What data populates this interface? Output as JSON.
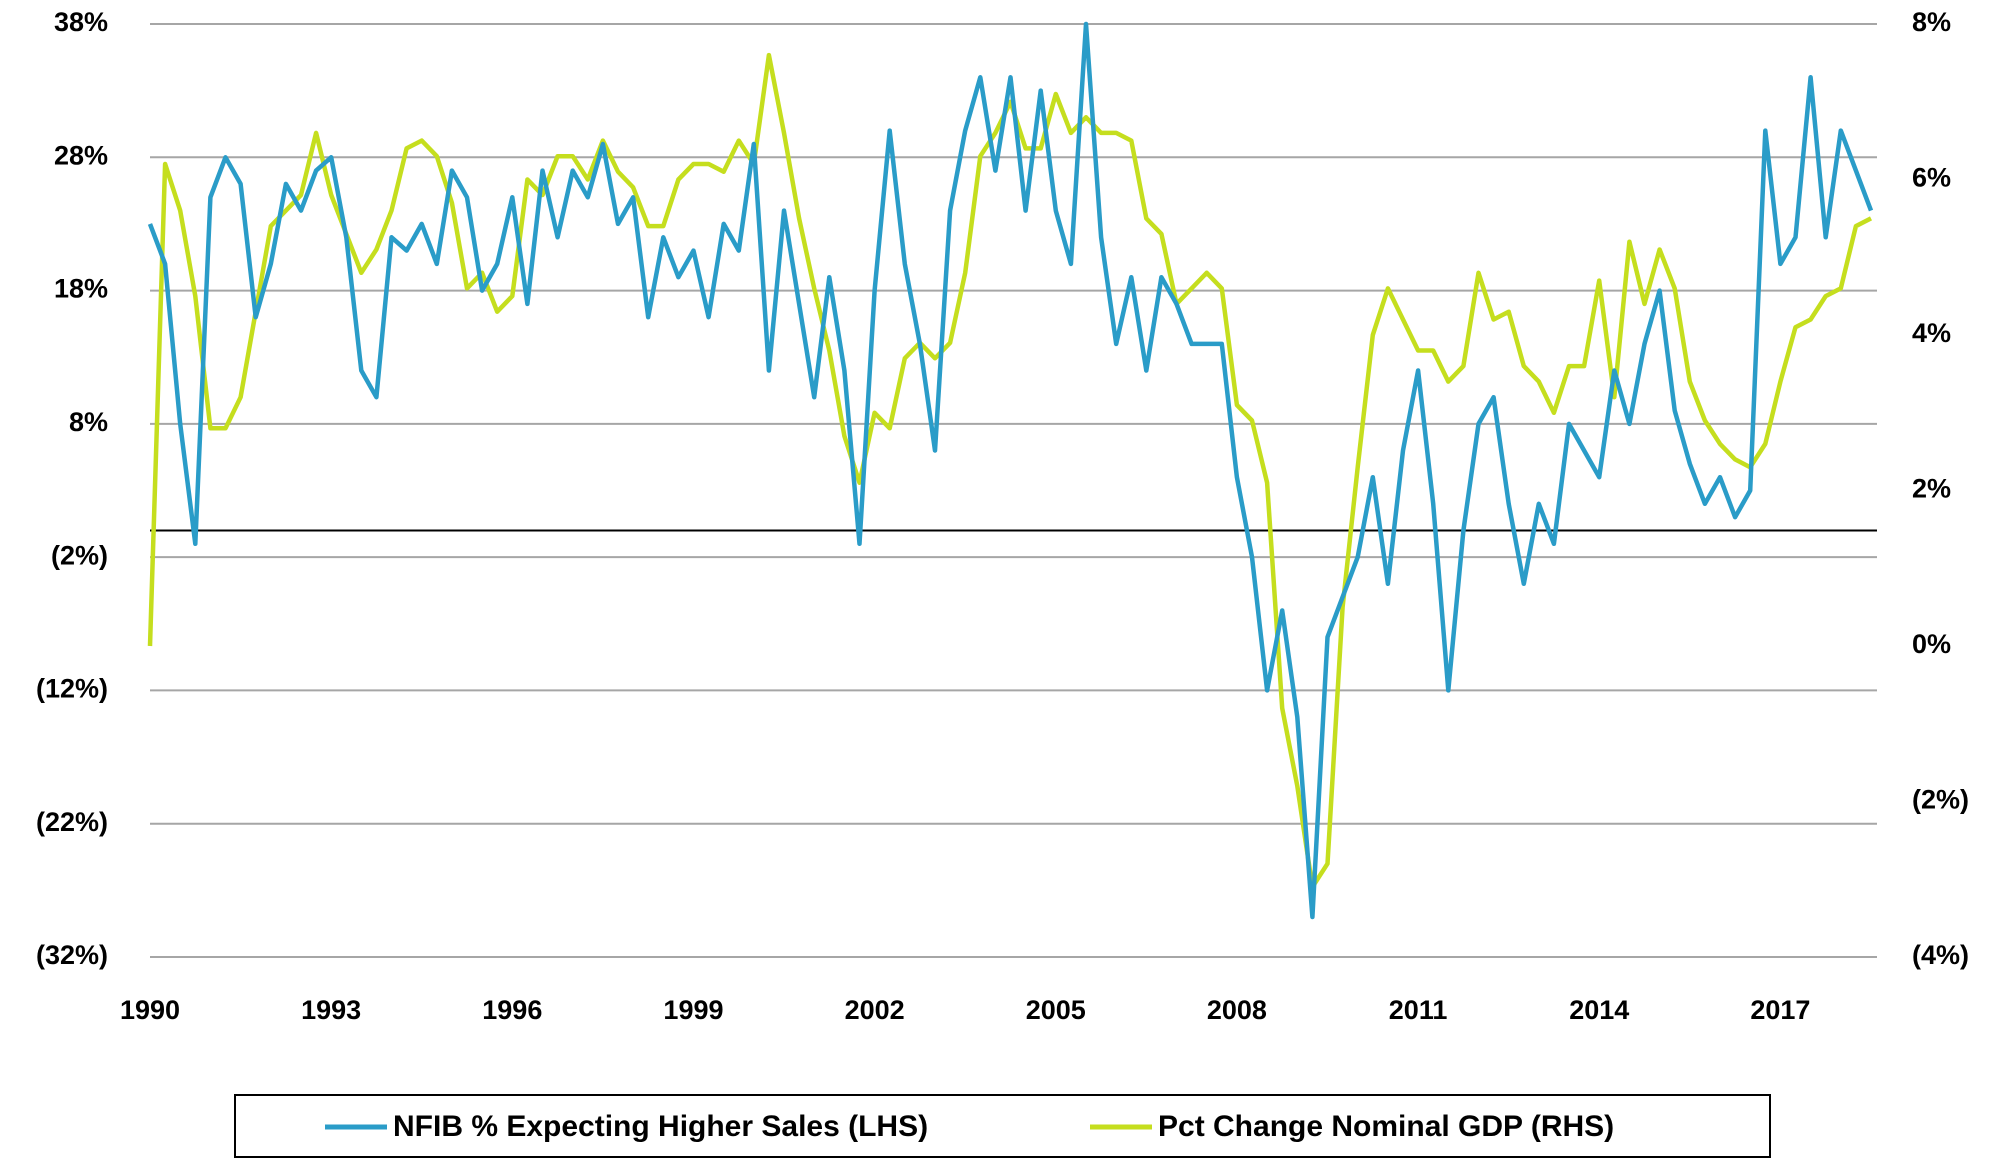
{
  "chart_data": {
    "type": "line",
    "x": [
      1990,
      1990.25,
      1990.5,
      1990.75,
      1991,
      1991.25,
      1991.5,
      1991.75,
      1992,
      1992.25,
      1992.5,
      1992.75,
      1993,
      1993.25,
      1993.5,
      1993.75,
      1994,
      1994.25,
      1994.5,
      1994.75,
      1995,
      1995.25,
      1995.5,
      1995.75,
      1996,
      1996.25,
      1996.5,
      1996.75,
      1997,
      1997.25,
      1997.5,
      1997.75,
      1998,
      1998.25,
      1998.5,
      1998.75,
      1999,
      1999.25,
      1999.5,
      1999.75,
      2000,
      2000.25,
      2000.5,
      2000.75,
      2001,
      2001.25,
      2001.5,
      2001.75,
      2002,
      2002.25,
      2002.5,
      2002.75,
      2003,
      2003.25,
      2003.5,
      2003.75,
      2004,
      2004.25,
      2004.5,
      2004.75,
      2005,
      2005.25,
      2005.5,
      2005.75,
      2006,
      2006.25,
      2006.5,
      2006.75,
      2007,
      2007.25,
      2007.5,
      2007.75,
      2008,
      2008.25,
      2008.5,
      2008.75,
      2009,
      2009.25,
      2009.5,
      2009.75,
      2010,
      2010.25,
      2010.5,
      2010.75,
      2011,
      2011.25,
      2011.5,
      2011.75,
      2012,
      2012.25,
      2012.5,
      2012.75,
      2013,
      2013.25,
      2013.5,
      2013.75,
      2014,
      2014.25,
      2014.5,
      2014.75,
      2015,
      2015.25,
      2015.5,
      2015.75,
      2016,
      2016.25,
      2016.5,
      2016.75,
      2017,
      2017.25,
      2017.5,
      2017.75,
      2018,
      2018.25,
      2018.5
    ],
    "series": [
      {
        "name": "NFIB % Expecting Higher Sales (LHS)",
        "color": "#2a9cc8",
        "values": [
          23,
          20,
          8,
          -1,
          25,
          28,
          26,
          16,
          20,
          26,
          24,
          27,
          28,
          22,
          12,
          10,
          22,
          21,
          23,
          20,
          27,
          25,
          18,
          20,
          25,
          17,
          27,
          22,
          27,
          25,
          29,
          23,
          25,
          16,
          22,
          19,
          21,
          16,
          23,
          21,
          29,
          12,
          24,
          17,
          10,
          19,
          12,
          -1,
          18,
          30,
          20,
          14,
          6,
          24,
          30,
          34,
          27,
          34,
          24,
          33,
          24,
          20,
          38,
          22,
          14,
          19,
          12,
          19,
          17,
          14,
          14,
          14,
          4,
          -2,
          -12,
          -6,
          -14,
          -29,
          -8,
          -5,
          -2,
          4,
          -4,
          6,
          12,
          2,
          -12,
          0,
          8,
          10,
          2,
          -4,
          2,
          -1,
          8,
          6,
          4,
          12,
          8,
          14,
          18,
          9,
          5,
          2,
          4,
          1,
          3,
          30,
          20,
          22,
          34,
          22,
          30,
          27,
          24
        ]
      },
      {
        "name": "Pct Change Nominal GDP (RHS)",
        "color": "#c5de1e",
        "axis": "y2",
        "values": [
          0,
          6.2,
          5.6,
          4.5,
          2.8,
          2.8,
          3.2,
          4.3,
          5.4,
          5.6,
          5.8,
          6.6,
          5.8,
          5.3,
          4.8,
          5.1,
          5.6,
          6.4,
          6.5,
          6.3,
          5.7,
          4.6,
          4.8,
          4.3,
          4.5,
          6.0,
          5.8,
          6.3,
          6.3,
          6.0,
          6.5,
          6.1,
          5.9,
          5.4,
          5.4,
          6.0,
          6.2,
          6.2,
          6.1,
          6.5,
          6.2,
          7.6,
          6.6,
          5.5,
          4.6,
          3.8,
          2.7,
          2.1,
          3.0,
          2.8,
          3.7,
          3.9,
          3.7,
          3.9,
          4.8,
          6.3,
          6.6,
          7.0,
          6.4,
          6.4,
          7.1,
          6.6,
          6.8,
          6.6,
          6.6,
          6.5,
          5.5,
          5.3,
          4.4,
          4.6,
          4.8,
          4.6,
          3.1,
          2.9,
          2.1,
          -0.8,
          -1.8,
          -3.1,
          -2.8,
          0.5,
          2.3,
          4.0,
          4.6,
          4.2,
          3.8,
          3.8,
          3.4,
          3.6,
          4.8,
          4.2,
          4.3,
          3.6,
          3.4,
          3.0,
          3.6,
          3.6,
          4.7,
          3.2,
          5.2,
          4.4,
          5.1,
          4.6,
          3.4,
          2.9,
          2.6,
          2.4,
          2.3,
          2.6,
          3.4,
          4.1,
          4.2,
          4.5,
          4.6,
          5.4,
          5.5
        ]
      }
    ],
    "xlim": [
      1990,
      2018.6
    ],
    "xticks": [
      1990,
      1993,
      1996,
      1999,
      2002,
      2005,
      2008,
      2011,
      2014,
      2017
    ],
    "ylim": [
      -32,
      38
    ],
    "yticks": [
      {
        "value": -32,
        "label": "(32%)"
      },
      {
        "value": -22,
        "label": "(22%)"
      },
      {
        "value": -12,
        "label": "(12%)"
      },
      {
        "value": -2,
        "label": "(2%)"
      },
      {
        "value": 8,
        "label": "8%"
      },
      {
        "value": 18,
        "label": "18%"
      },
      {
        "value": 28,
        "label": "28%"
      },
      {
        "value": 38,
        "label": "38%"
      }
    ],
    "y2lim": [
      -4,
      8
    ],
    "y2ticks": [
      {
        "value": -4,
        "label": "(4%)"
      },
      {
        "value": -2,
        "label": "(2%)"
      },
      {
        "value": 0,
        "label": "0%"
      },
      {
        "value": 2,
        "label": "2%"
      },
      {
        "value": 4,
        "label": "4%"
      },
      {
        "value": 6,
        "label": "6%"
      },
      {
        "value": 8,
        "label": "8%"
      }
    ],
    "grid": true,
    "legend": "bottom"
  }
}
